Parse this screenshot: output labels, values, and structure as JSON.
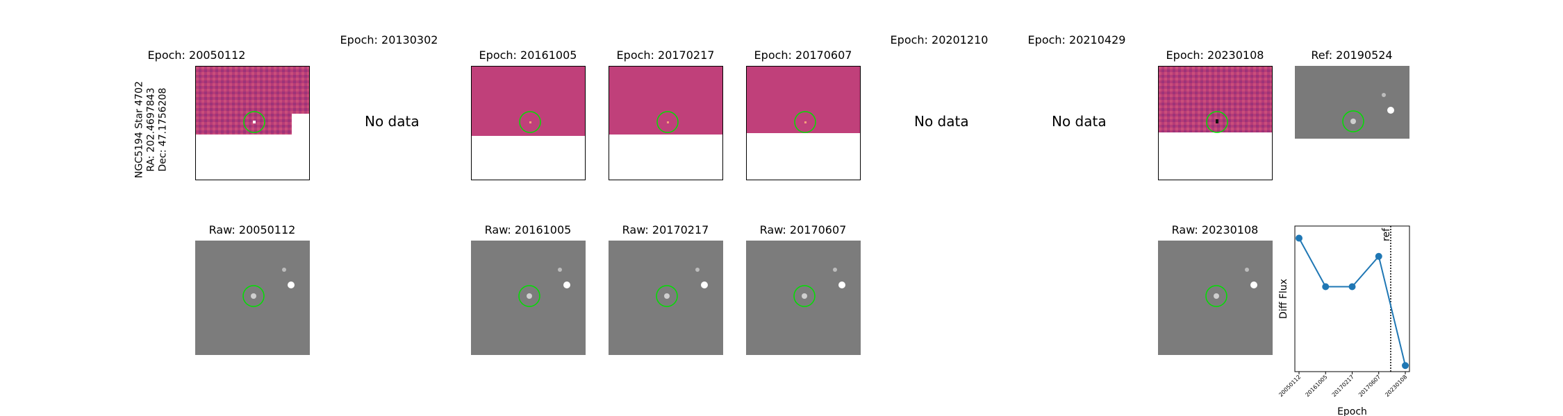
{
  "target": {
    "name": "NGC5194 Star 4702",
    "ra": "RA: 202.4697843",
    "dec": "Dec: 47.1756208"
  },
  "diff_titles": {
    "e1": "Epoch: 20050112",
    "e2": "Epoch: 20130302",
    "e3": "Epoch: 20161005",
    "e4": "Epoch: 20170217",
    "e5": "Epoch: 20170607",
    "e6": "Epoch: 20201210",
    "e7": "Epoch: 20210429",
    "e8": "Epoch: 20230108",
    "ref": "Ref: 20190524"
  },
  "raw_titles": {
    "r1": "Raw: 20050112",
    "r3": "Raw: 20161005",
    "r4": "Raw: 20170217",
    "r5": "Raw: 20170607",
    "r8": "Raw: 20230108"
  },
  "no_data_label": "No data",
  "colors": {
    "diff_base": "#c0407a",
    "marker_circle": "#00e000",
    "raw_gray": "#7a7a7a",
    "line": "#1f77b4"
  },
  "chart_data": {
    "type": "line",
    "categories": [
      "20050112",
      "20161005",
      "20170217",
      "20170607",
      "20230108"
    ],
    "values": [
      0.85,
      0.45,
      0.45,
      0.7,
      -0.2
    ],
    "ylim": [
      -0.25,
      0.95
    ],
    "xlabel": "Epoch",
    "ylabel": "Diff Flux",
    "reference_line": {
      "label": "ref",
      "position_between": [
        "20170607",
        "20230108"
      ],
      "fraction": 0.45
    },
    "grid": false
  }
}
